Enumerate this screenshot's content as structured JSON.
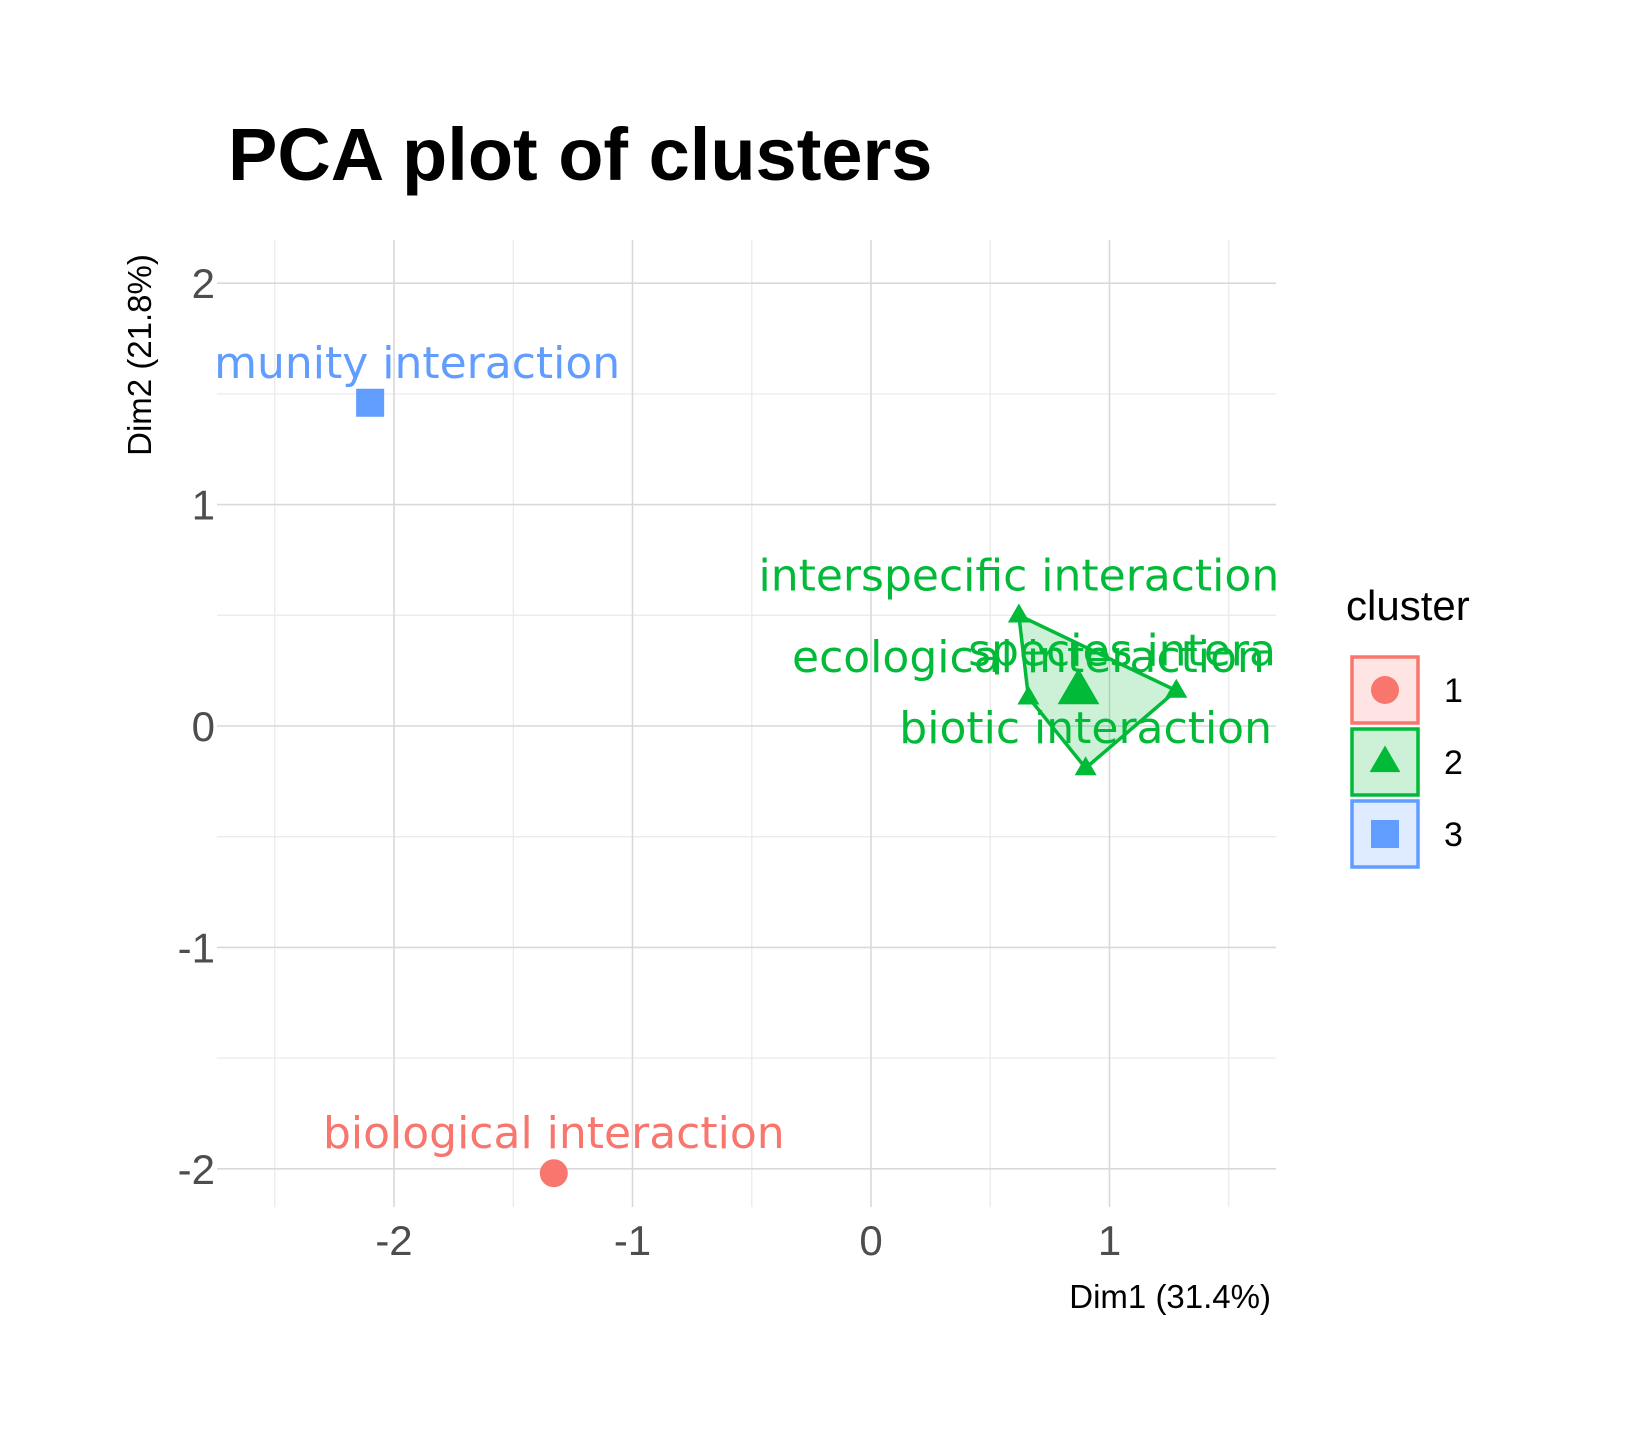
{
  "chart_data": {
    "type": "scatter",
    "title": "PCA plot of clusters",
    "xlabel": "Dim1 (31.4%)",
    "ylabel": "Dim2 (21.8%)",
    "xlim": [
      -2.7,
      1.7
    ],
    "ylim": [
      -2.2,
      2.2
    ],
    "x_ticks": [
      -2,
      -1,
      0,
      1
    ],
    "y_ticks": [
      -2,
      -1,
      0,
      1,
      2
    ],
    "grid": true,
    "legend": {
      "title": "cluster",
      "position": "right",
      "entries": [
        {
          "label": "1",
          "color": "#F8766D",
          "shape": "circle"
        },
        {
          "label": "2",
          "color": "#00BA38",
          "shape": "triangle"
        },
        {
          "label": "3",
          "color": "#619CFF",
          "shape": "square"
        }
      ]
    },
    "points": [
      {
        "label": "community interaction",
        "cluster": "3",
        "x": -2.1,
        "y": 1.46
      },
      {
        "label": "biological interaction",
        "cluster": "1",
        "x": -1.33,
        "y": -2.02
      },
      {
        "label": "interspecific interaction",
        "cluster": "2",
        "x": 0.62,
        "y": 0.5
      },
      {
        "label": "species interaction",
        "cluster": "2",
        "x": 1.28,
        "y": 0.16
      },
      {
        "label": "ecological interaction",
        "cluster": "2",
        "x": 0.66,
        "y": 0.13
      },
      {
        "label": "biotic interaction",
        "cluster": "2",
        "x": 0.9,
        "y": -0.19
      }
    ],
    "centroids": [
      {
        "cluster": "2",
        "x": 0.87,
        "y": 0.16
      }
    ],
    "hull": {
      "cluster": "2",
      "fill": "#00BA38",
      "fill_opacity": 0.2
    }
  }
}
